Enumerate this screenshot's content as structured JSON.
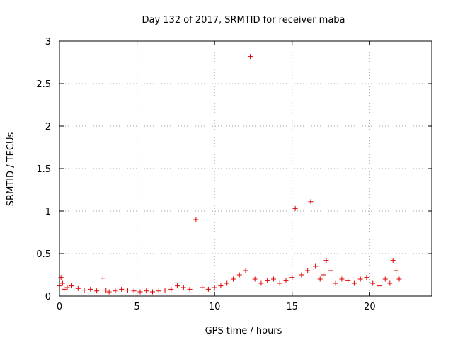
{
  "chart_data": {
    "type": "scatter",
    "title": "Day 132 of 2017, SRMTID for receiver maba",
    "xlabel": "GPS time / hours",
    "ylabel": "SRMTID / TECUs",
    "xlim": [
      0,
      24
    ],
    "ylim": [
      0,
      3
    ],
    "x_ticks": [
      0,
      5,
      10,
      15,
      20
    ],
    "y_ticks": [
      0,
      0.5,
      1,
      1.5,
      2,
      2.5,
      3
    ],
    "x_tick_labels": [
      "0",
      "5",
      "10",
      "15",
      "20"
    ],
    "y_tick_labels": [
      "0",
      "0.5",
      "1",
      "1.5",
      "2",
      "2.5",
      "3"
    ],
    "grid": true,
    "marker": "plus",
    "color": "#e00000",
    "series": [
      {
        "x": [
          0.0,
          0.1,
          0.2,
          0.3,
          0.5,
          0.8,
          1.2,
          1.6,
          2.0,
          2.4,
          2.8,
          3.0,
          3.2,
          3.6,
          4.0,
          4.4,
          4.8,
          5.2,
          5.6,
          6.0,
          6.4,
          6.8,
          7.2,
          7.6,
          8.0,
          8.4,
          8.8,
          9.2,
          9.6,
          10.0,
          10.4,
          10.8,
          11.2,
          11.6,
          12.0,
          12.3,
          12.6,
          13.0,
          13.4,
          13.8,
          14.2,
          14.6,
          15.0,
          15.2,
          15.6,
          16.0,
          16.2,
          16.5,
          16.8,
          17.0,
          17.2,
          17.5,
          17.8,
          18.2,
          18.6,
          19.0,
          19.4,
          19.8,
          20.2,
          20.6,
          21.0,
          21.3,
          21.5,
          21.7,
          21.9
        ],
        "y": [
          0.12,
          0.22,
          0.15,
          0.08,
          0.1,
          0.12,
          0.09,
          0.07,
          0.08,
          0.06,
          0.21,
          0.07,
          0.05,
          0.06,
          0.08,
          0.07,
          0.06,
          0.05,
          0.06,
          0.05,
          0.06,
          0.07,
          0.08,
          0.12,
          0.1,
          0.08,
          0.9,
          0.1,
          0.08,
          0.1,
          0.12,
          0.15,
          0.2,
          0.25,
          0.3,
          2.82,
          0.2,
          0.15,
          0.18,
          0.2,
          0.15,
          0.18,
          0.22,
          1.03,
          0.25,
          0.3,
          1.11,
          0.35,
          0.2,
          0.25,
          0.42,
          0.3,
          0.15,
          0.2,
          0.18,
          0.15,
          0.2,
          0.22,
          0.15,
          0.12,
          0.2,
          0.15,
          0.42,
          0.3,
          0.2
        ]
      }
    ]
  }
}
